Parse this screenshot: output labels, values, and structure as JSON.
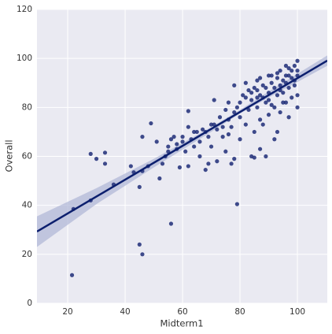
{
  "chart_data": {
    "type": "scatter",
    "x_label": "Midterm1",
    "y_label": "Overall",
    "xlim": [
      9.3,
      110.4
    ],
    "ylim": [
      0,
      120
    ],
    "xticks": [
      20,
      40,
      60,
      80,
      100
    ],
    "yticks": [
      0,
      20,
      40,
      60,
      80,
      100,
      120
    ],
    "grid": true,
    "color": "#1f2d78",
    "line_color": "#0c1f6e",
    "band_color": "#aeb5d6",
    "x": [
      21.5,
      22,
      28,
      28,
      30,
      33,
      33,
      36,
      42,
      43,
      45,
      46,
      45,
      46,
      46,
      48,
      49,
      51,
      52,
      53,
      54,
      55,
      55,
      56,
      56,
      57,
      58,
      59,
      60,
      61,
      62,
      62,
      62,
      63,
      64,
      65,
      66,
      67,
      68,
      69,
      69,
      70,
      71,
      71,
      72,
      73,
      74,
      75,
      75,
      76,
      76,
      77,
      77,
      78,
      78,
      79,
      79,
      80,
      80,
      81,
      82,
      82,
      83,
      84,
      84,
      85,
      85,
      85,
      86,
      86,
      87,
      87,
      87,
      88,
      88,
      89,
      89,
      90,
      90,
      90,
      91,
      91,
      92,
      92,
      93,
      93,
      93,
      94,
      94,
      94,
      95,
      95,
      96,
      96,
      96,
      97,
      97,
      98,
      98,
      99,
      99,
      100,
      100,
      100,
      100,
      95,
      92,
      88,
      86,
      83,
      80,
      78,
      76,
      74,
      72,
      70,
      68,
      66,
      64,
      60,
      58,
      98,
      97,
      99,
      94,
      91,
      89,
      87,
      84,
      82,
      97,
      100,
      96,
      93,
      90,
      86
    ],
    "series": [
      {
        "name": "Overall",
        "values": [
          11.5,
          38.5,
          42,
          61,
          59,
          57,
          61.5,
          48.5,
          56,
          53.5,
          24,
          20,
          47.5,
          54,
          68,
          56,
          73.5,
          66,
          51,
          57,
          60,
          62,
          64,
          32.5,
          67,
          68,
          63,
          55.5,
          66,
          62,
          72,
          78.5,
          56,
          67,
          64,
          70,
          60,
          71,
          54.5,
          57,
          68,
          64,
          73,
          83,
          58,
          76,
          72,
          79,
          62,
          69,
          82,
          57,
          72,
          59,
          89,
          40.5,
          80,
          76,
          67,
          85,
          73,
          90,
          79,
          83,
          60,
          70,
          88,
          59.5,
          80,
          91,
          63,
          75,
          85,
          89,
          73,
          82,
          60,
          86,
          93,
          77,
          81,
          90,
          88,
          67,
          92,
          85,
          70,
          89,
          95,
          78,
          86,
          91,
          93,
          82,
          97,
          88,
          76,
          92,
          95,
          89,
          97,
          93,
          99,
          85,
          80,
          82,
          80,
          84,
          87,
          87,
          82,
          78,
          75,
          68,
          71,
          73,
          70,
          66,
          70,
          68,
          65,
          84,
          96,
          91,
          87,
          93,
          88,
          92,
          86,
          84,
          93,
          95,
          90,
          94,
          83,
          84
        ]
      }
    ],
    "regression": {
      "x": [
        9.3,
        110.4
      ],
      "y": [
        29.3,
        99.1
      ]
    },
    "band": {
      "x": [
        9.3,
        30,
        50,
        70,
        80,
        90,
        110.4
      ],
      "lower": [
        23,
        40.5,
        55.5,
        70,
        77.5,
        84,
        97
      ],
      "upper": [
        35.5,
        47,
        59,
        72,
        79,
        86.5,
        101.2
      ]
    }
  }
}
